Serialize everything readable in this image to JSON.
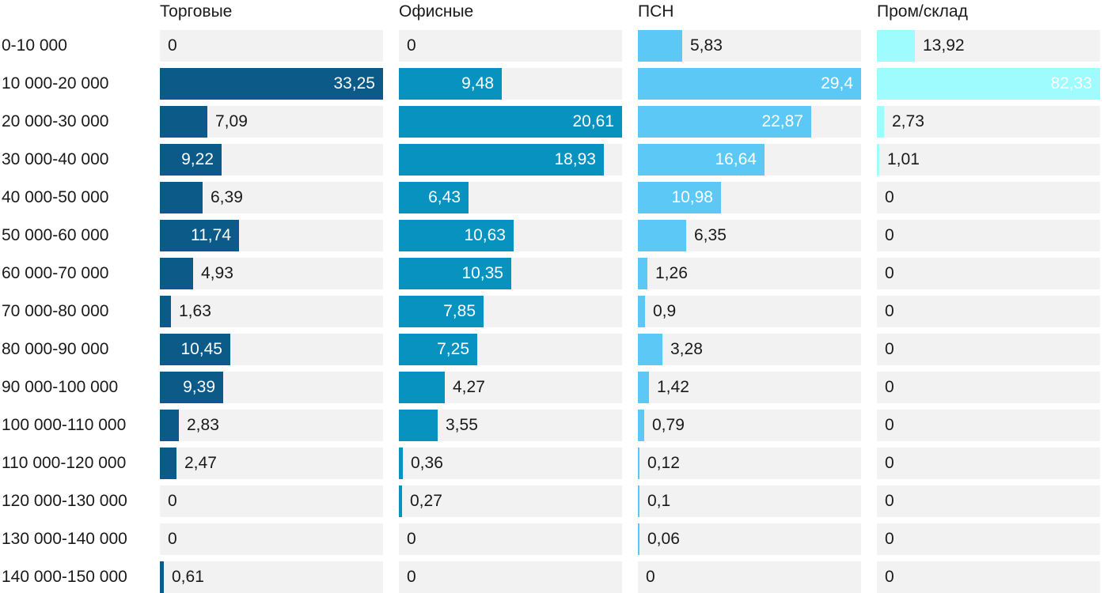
{
  "chart_data": {
    "type": "bar",
    "orientation": "horizontal",
    "layout": "small-multiples",
    "categories": [
      "0-10 000",
      "10 000-20 000",
      "20 000-30 000",
      "30 000-40 000",
      "40 000-50 000",
      "50 000-60 000",
      "60 000-70 000",
      "70 000-80 000",
      "80 000-90 000",
      "90 000-100 000",
      "100 000-110 000",
      "110 000-120 000",
      "120 000-130 000",
      "130 000-140 000",
      "140 000-150 000"
    ],
    "series": [
      {
        "name": "Торговые",
        "color": "#0b5a88",
        "values": [
          0,
          33.25,
          7.09,
          9.22,
          6.39,
          11.74,
          4.93,
          1.63,
          10.45,
          9.39,
          2.83,
          2.47,
          0,
          0,
          0.61
        ],
        "labels": [
          "0",
          "33,25",
          "7,09",
          "9,22",
          "6,39",
          "11,74",
          "4,93",
          "1,63",
          "10,45",
          "9,39",
          "2,83",
          "2,47",
          "0",
          "0",
          "0,61"
        ]
      },
      {
        "name": "Офисные",
        "color": "#0892c0",
        "values": [
          0,
          9.48,
          20.61,
          18.93,
          6.43,
          10.63,
          10.35,
          7.85,
          7.25,
          4.27,
          3.55,
          0.36,
          0.27,
          0,
          0
        ],
        "labels": [
          "0",
          "9,48",
          "20,61",
          "18,93",
          "6,43",
          "10,63",
          "10,35",
          "7,85",
          "7,25",
          "4,27",
          "3,55",
          "0,36",
          "0,27",
          "0",
          "0"
        ]
      },
      {
        "name": "ПСН",
        "color": "#5bc8f5",
        "values": [
          5.83,
          29.4,
          22.87,
          16.64,
          10.98,
          6.35,
          1.26,
          0.9,
          3.28,
          1.42,
          0.79,
          0.12,
          0.1,
          0.06,
          0
        ],
        "labels": [
          "5,83",
          "29,4",
          "22,87",
          "16,64",
          "10,98",
          "6,35",
          "1,26",
          "0,9",
          "3,28",
          "1,42",
          "0,79",
          "0,12",
          "0,1",
          "0,06",
          "0"
        ]
      },
      {
        "name": "Пром/склад",
        "color": "#9efcff",
        "values": [
          13.92,
          82.33,
          2.73,
          1.01,
          0,
          0,
          0,
          0,
          0,
          0,
          0,
          0,
          0,
          0,
          0
        ],
        "labels": [
          "13,92",
          "82,33",
          "2,73",
          "1,01",
          "0",
          "0",
          "0",
          "0",
          "0",
          "0",
          "0",
          "0",
          "0",
          "0",
          "0"
        ]
      }
    ],
    "scale": "each panel scaled to its own maximum",
    "grid": false,
    "legend": "none"
  }
}
